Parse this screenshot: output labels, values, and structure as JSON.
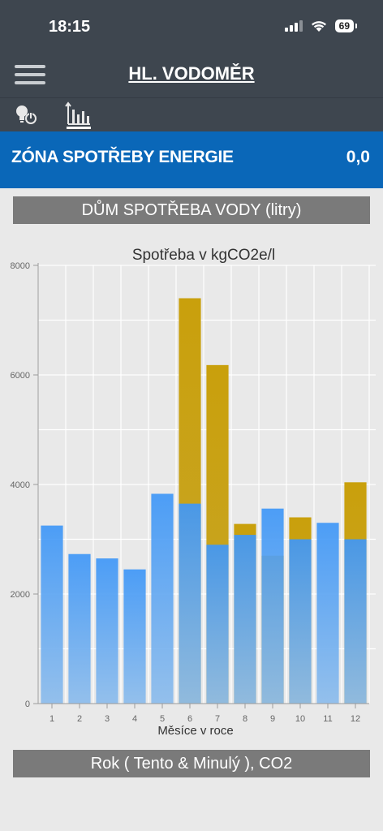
{
  "status": {
    "time": "18:15",
    "battery": "69"
  },
  "header": {
    "title": "HL. VODOMĚR"
  },
  "zone": {
    "label": "ZÓNA SPOTŘEBY ENERGIE",
    "value": "0,0"
  },
  "section_title": "DŮM SPOTŘEBA VODY (litry)",
  "footer_label": "Rok ( Tento & Minulý ), CO2",
  "colors": {
    "current": "#4a9ff5",
    "previous": "#c9a00c"
  },
  "icons": [
    "menu-icon",
    "bulb-power-icon",
    "bar-chart-icon",
    "wifi-icon",
    "signal-icon",
    "battery-icon"
  ],
  "chart_data": {
    "type": "bar",
    "title": "Spotřeba v kgCO2e/l",
    "xlabel": "Měsíce v roce",
    "ylabel": "",
    "ylim": [
      0,
      8000
    ],
    "yticks": [
      0,
      2000,
      4000,
      6000,
      8000
    ],
    "categories": [
      "1",
      "2",
      "3",
      "4",
      "5",
      "6",
      "7",
      "8",
      "9",
      "10",
      "11",
      "12"
    ],
    "series": [
      {
        "values": [
          3250,
          2730,
          2650,
          2450,
          3830,
          3650,
          2900,
          3080,
          3560,
          3000,
          3300,
          3000
        ]
      },
      {
        "values": [
          0,
          0,
          0,
          0,
          0,
          7400,
          6180,
          3280,
          2700,
          3400,
          0,
          4040
        ]
      }
    ],
    "grid": true,
    "legend": "none"
  }
}
